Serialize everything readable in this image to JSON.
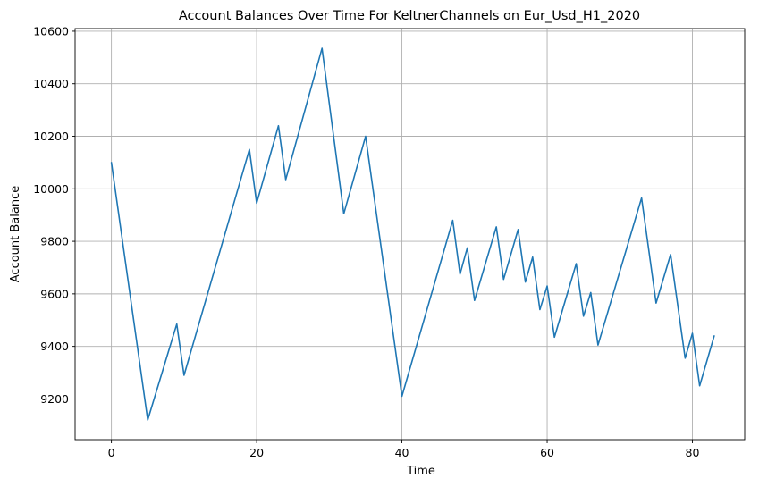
{
  "chart_data": {
    "type": "line",
    "title": "Account Balances Over Time For KeltnerChannels on Eur_Usd_H1_2020",
    "xlabel": "Time",
    "ylabel": "Account Balance",
    "xlim": [
      -5,
      87.2
    ],
    "ylim": [
      9045,
      10610
    ],
    "xticks": [
      0,
      20,
      40,
      60,
      80
    ],
    "yticks": [
      9200,
      9400,
      9600,
      9800,
      10000,
      10200,
      10400,
      10600
    ],
    "grid": true,
    "series": [
      {
        "color": "#1f77b4",
        "x": [
          0,
          5,
          9,
          10,
          19,
          20,
          23,
          24,
          29,
          32,
          35,
          40,
          47,
          48,
          49,
          50,
          53,
          54,
          56,
          57,
          58,
          59,
          60,
          61,
          64,
          65,
          66,
          67,
          73,
          75,
          77,
          79,
          80,
          81,
          83
        ],
        "y": [
          10100,
          9120,
          9485,
          9290,
          10150,
          9945,
          10240,
          10035,
          10535,
          9905,
          10200,
          9210,
          9880,
          9675,
          9775,
          9575,
          9855,
          9655,
          9845,
          9645,
          9740,
          9540,
          9630,
          9435,
          9715,
          9515,
          9605,
          9405,
          9965,
          9565,
          9750,
          9355,
          9450,
          9250,
          9440
        ]
      }
    ]
  }
}
